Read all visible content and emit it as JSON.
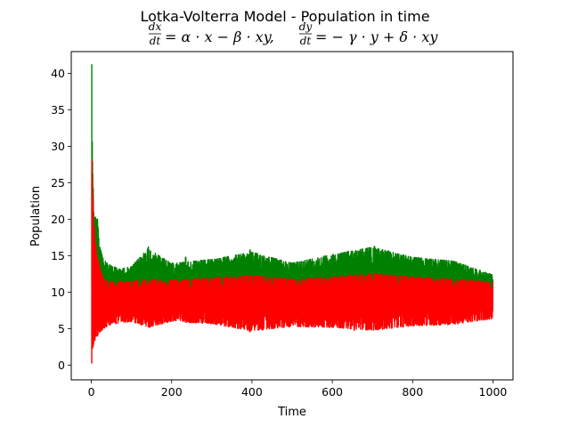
{
  "chart_data": {
    "type": "line",
    "title": "Lotka-Volterra Model - Population in time",
    "subtitle_left": "dx/dt = α · x − β · xy,",
    "subtitle_right": "dy/dt = − γ · y + δ · xy",
    "xlabel": "Time",
    "ylabel": "Population",
    "xlim": [
      -50,
      1050
    ],
    "ylim": [
      -2,
      43
    ],
    "xticks": [
      0,
      200,
      400,
      600,
      800,
      1000
    ],
    "yticks": [
      0,
      5,
      10,
      15,
      20,
      25,
      30,
      35,
      40
    ],
    "grid": false,
    "legend": "none",
    "series": [
      {
        "color": "#008000",
        "role": "prey",
        "envelope": {
          "x": [
            0,
            1,
            3,
            6,
            10,
            15,
            20,
            30,
            45,
            70,
            100,
            140,
            200,
            300,
            400,
            500,
            600,
            700,
            800,
            900,
            1000
          ],
          "max": [
            41.2,
            38,
            28,
            22,
            19.5,
            20.3,
            16.5,
            14.5,
            13.8,
            13.2,
            13.5,
            16,
            14,
            14.5,
            15.5,
            14,
            15.2,
            16.2,
            14.8,
            14.3,
            12.4
          ],
          "min": [
            0.5,
            3,
            5,
            6,
            7,
            7.5,
            8,
            8.5,
            9,
            9,
            9,
            9,
            9,
            9,
            9,
            9,
            9,
            9,
            9,
            9,
            9
          ]
        },
        "peaks": [
          {
            "x": 0.5,
            "y": 41.2
          },
          {
            "x": 10,
            "y": 20.3
          },
          {
            "x": 142,
            "y": 16.2
          },
          {
            "x": 235,
            "y": 14.8
          },
          {
            "x": 395,
            "y": 15.8
          },
          {
            "x": 405,
            "y": 13.5
          },
          {
            "x": 640,
            "y": 15.6
          },
          {
            "x": 705,
            "y": 16.3
          },
          {
            "x": 760,
            "y": 14.9
          },
          {
            "x": 860,
            "y": 13.9
          },
          {
            "x": 990,
            "y": 12.4
          }
        ]
      },
      {
        "color": "#ff0000",
        "role": "predator",
        "envelope": {
          "x": [
            0,
            1,
            3,
            6,
            10,
            15,
            20,
            30,
            45,
            70,
            100,
            140,
            200,
            300,
            400,
            500,
            600,
            700,
            800,
            900,
            1000
          ],
          "max": [
            32,
            30,
            25,
            20,
            17,
            15,
            13.5,
            12,
            11.5,
            11.5,
            11.5,
            11.8,
            11.6,
            12,
            12.3,
            11.8,
            12.1,
            12.6,
            12.1,
            11.8,
            11.4
          ],
          "min": [
            0.3,
            1,
            2,
            3,
            3.5,
            4,
            4.5,
            5,
            5.5,
            5.8,
            6,
            5.2,
            6,
            5.7,
            4.7,
            5.3,
            5.2,
            4.8,
            5.4,
            5.6,
            6.4
          ]
        },
        "troughs": [
          {
            "x": 0.5,
            "y": 0.3
          },
          {
            "x": 145,
            "y": 5.2
          },
          {
            "x": 395,
            "y": 4.6
          },
          {
            "x": 655,
            "y": 4.8
          },
          {
            "x": 715,
            "y": 4.9
          }
        ]
      }
    ]
  }
}
